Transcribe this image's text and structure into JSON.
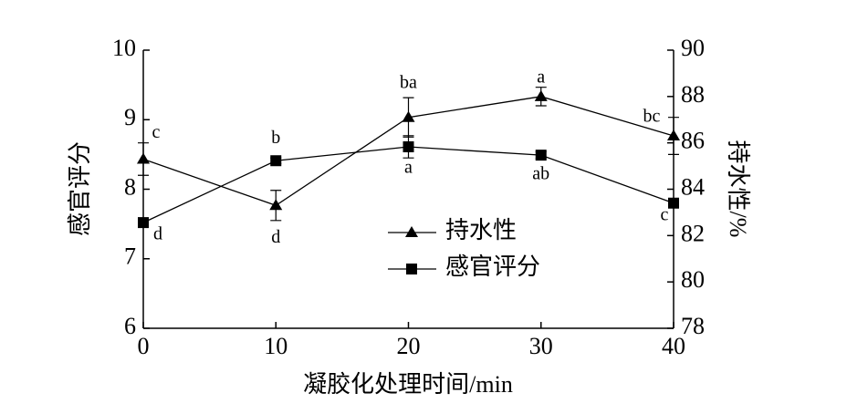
{
  "chart_data": {
    "type": "line",
    "xlabel": "凝胶化处理时间/min",
    "ylabel": "感官评分",
    "y2label": "持水性/%",
    "x": [
      0,
      10,
      20,
      30,
      40
    ],
    "xlim": [
      0,
      40
    ],
    "xticks": [
      0,
      10,
      20,
      30,
      40
    ],
    "ylim": [
      6,
      10
    ],
    "yticks": [
      6,
      7,
      8,
      9,
      10
    ],
    "y2lim": [
      78,
      90
    ],
    "y2ticks": [
      78,
      80,
      82,
      84,
      86,
      88,
      90
    ],
    "legend": "center",
    "series": [
      {
        "name": "持水性",
        "color": "#000000",
        "marker": "triangle",
        "axis": "y2",
        "values": [
          85.3,
          83.3,
          87.1,
          88.0,
          86.3
        ],
        "errors": [
          0.7,
          0.65,
          0.85,
          0.4,
          0.8
        ],
        "annotations": [
          "c",
          "d",
          "ba",
          "a",
          "bc"
        ]
      },
      {
        "name": "感官评分",
        "color": "#000000",
        "marker": "square",
        "axis": "y",
        "values": [
          7.52,
          8.41,
          8.61,
          8.49,
          7.8
        ],
        "errors": [
          0.04,
          0.04,
          0.16,
          0.05,
          0.05
        ],
        "annotations": [
          "d",
          "b",
          "a",
          "ab",
          "c"
        ]
      }
    ]
  }
}
